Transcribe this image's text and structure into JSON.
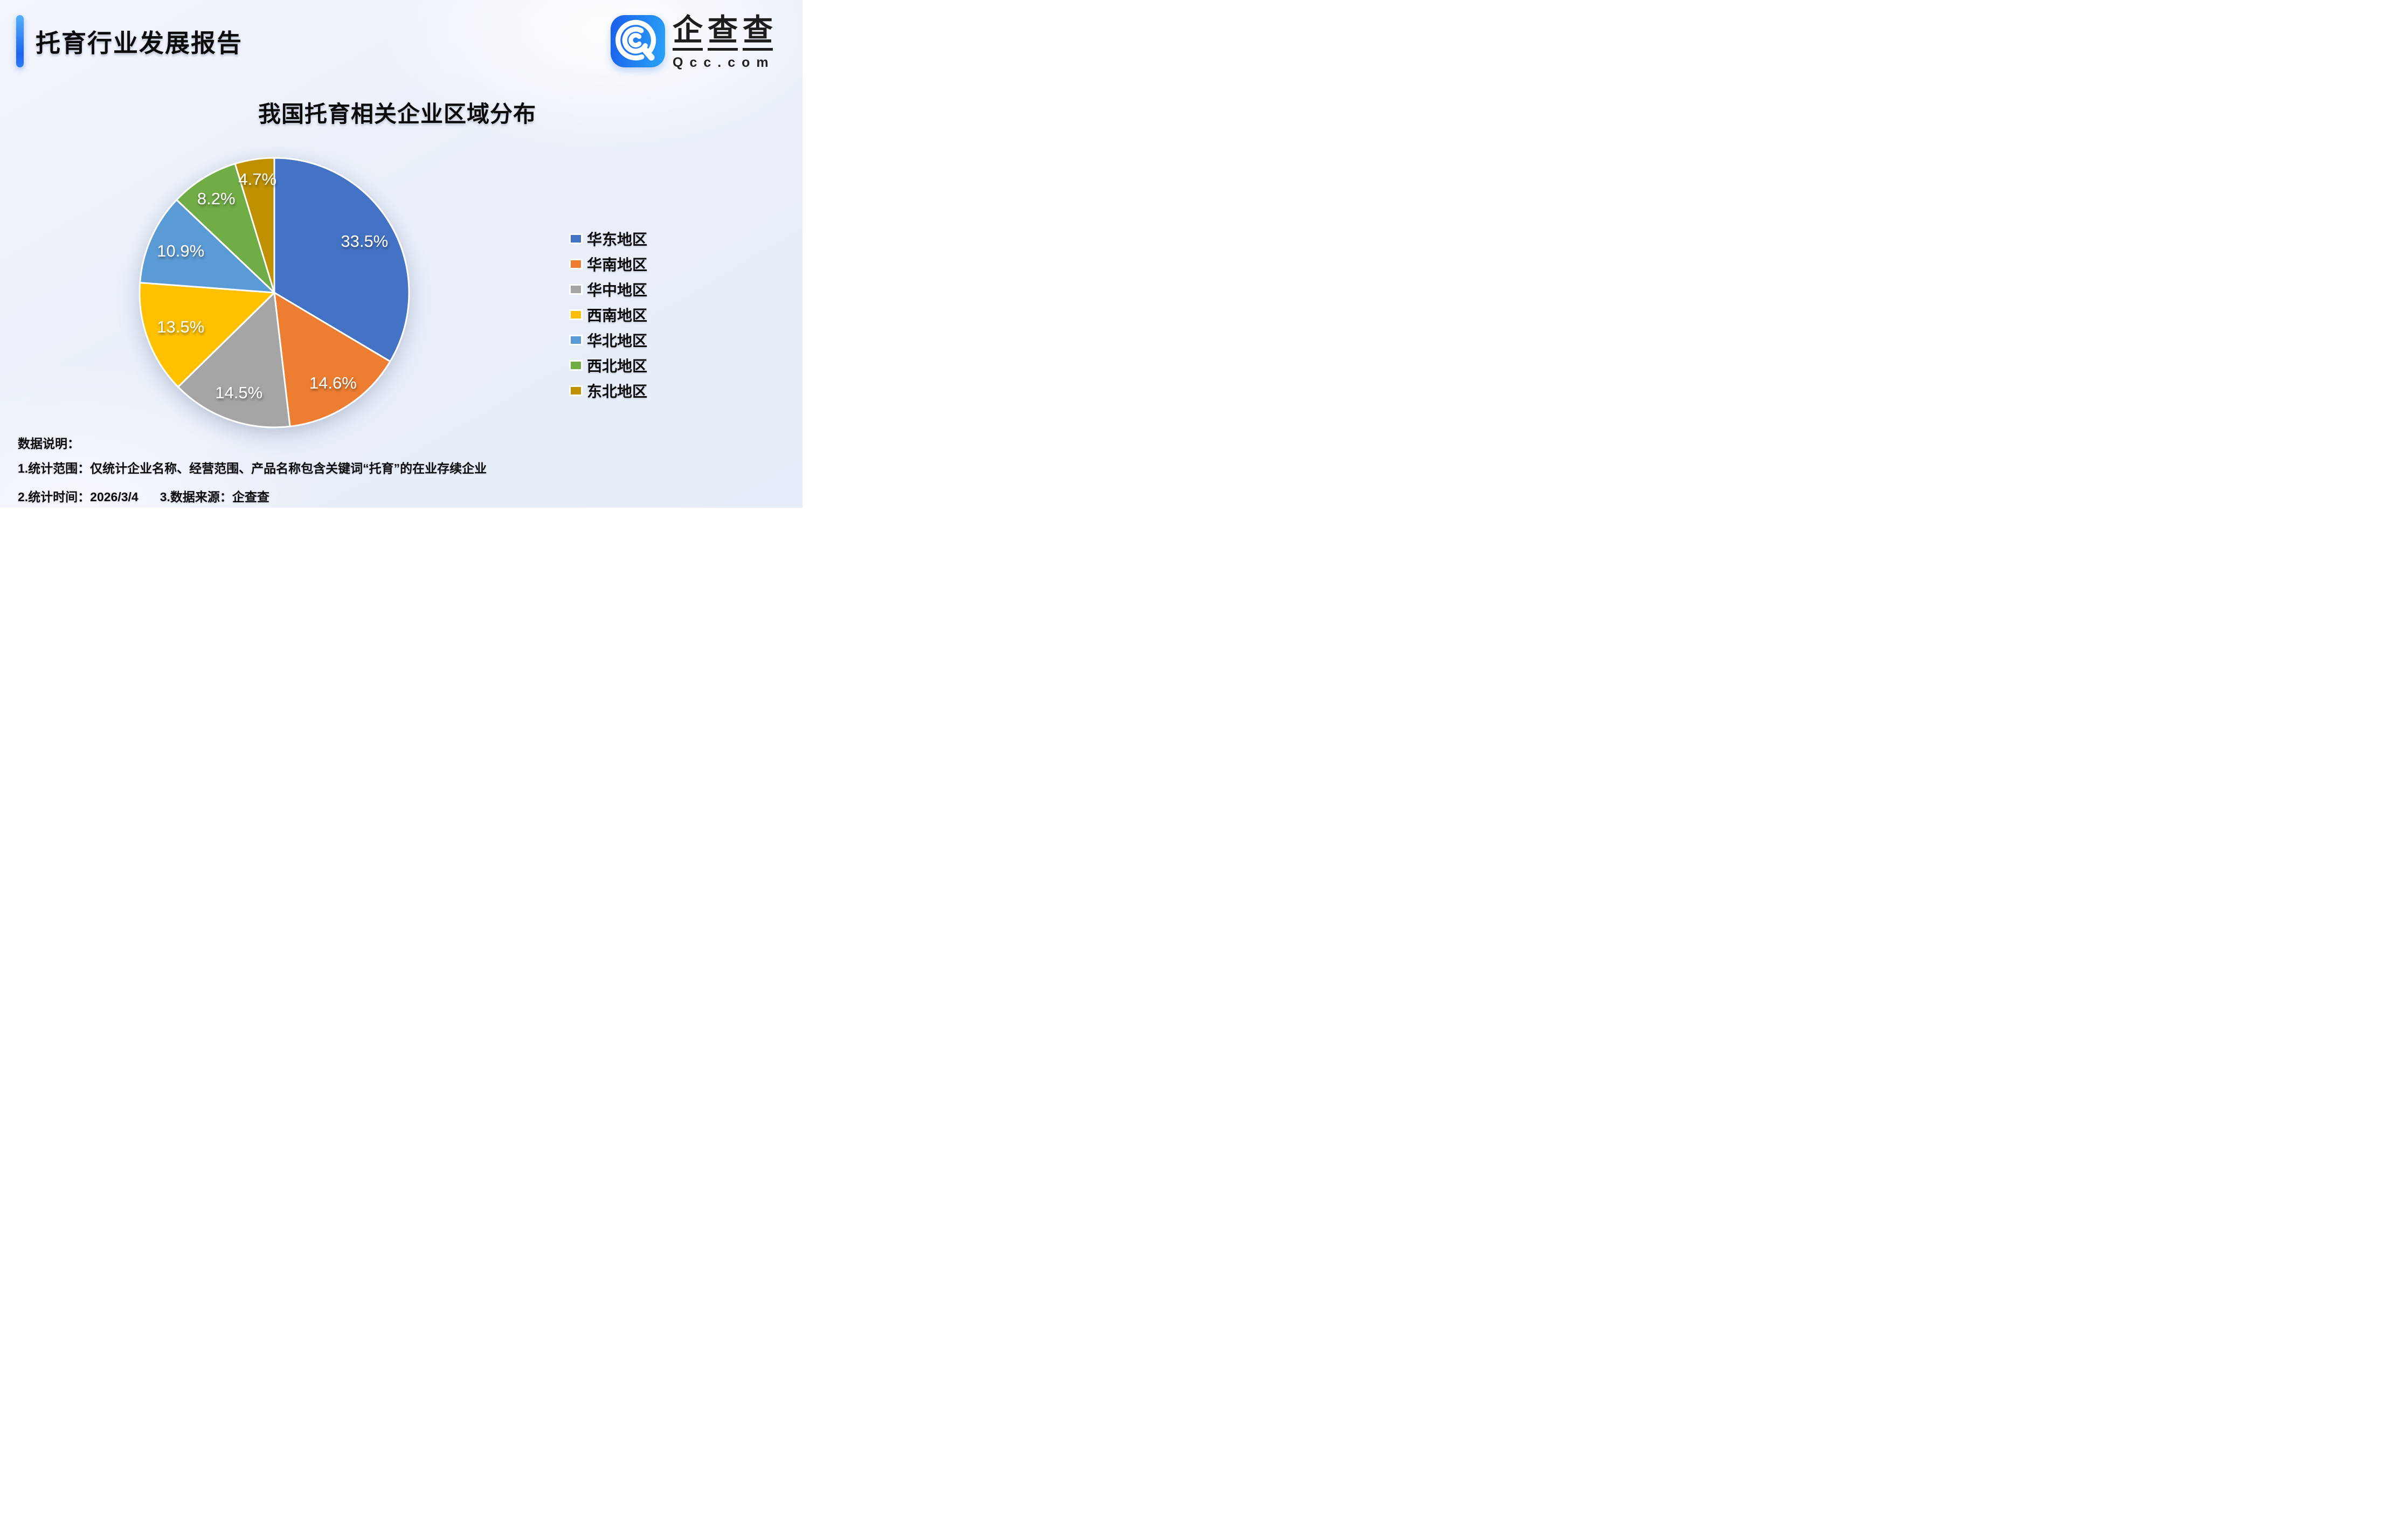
{
  "header": {
    "title": "托育行业发展报告"
  },
  "logo": {
    "brand": "企查查",
    "domain": "Qcc.com",
    "icon": "qcc-spiral-q-icon",
    "icon_gradient": [
      "#1A5EEC",
      "#2AA4F7"
    ]
  },
  "chart": {
    "title": "我国托育相关企业区域分布"
  },
  "chart_data": {
    "type": "pie",
    "title": "我国托育相关企业区域分布",
    "categories": [
      "华东地区",
      "华南地区",
      "华中地区",
      "西南地区",
      "华北地区",
      "西北地区",
      "东北地区"
    ],
    "values": [
      33.5,
      14.6,
      14.5,
      13.5,
      10.9,
      8.2,
      4.7
    ],
    "labels": [
      "33.5%",
      "14.6%",
      "14.5%",
      "13.5%",
      "10.9%",
      "8.2%",
      "4.7%"
    ],
    "unit": "%",
    "colors": [
      "#4472C4",
      "#ED7D31",
      "#A5A5A5",
      "#FFC000",
      "#5B9BD5",
      "#70AD47",
      "#BF9000"
    ],
    "start_angle_deg": 0,
    "direction": "clockwise",
    "legend_position": "right",
    "label_radius_factors": [
      0.77,
      0.8,
      0.79,
      0.74,
      0.76,
      0.82,
      0.85
    ],
    "slice_border_color": "#ffffff"
  },
  "notes": {
    "heading": "数据说明：",
    "line1": "1.统计范围：仅统计企业名称、经营范围、产品名称包含关键词“托育”的在业存续企业",
    "line2a": "2.统计时间：2026/3/4",
    "line2b": "3.数据来源：企查查"
  }
}
